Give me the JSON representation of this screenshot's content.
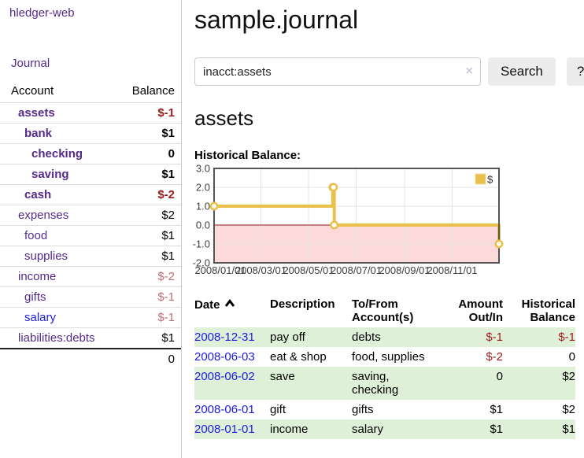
{
  "app": {
    "title": "hledger-web"
  },
  "colors": {
    "link_purple": "#552a8b",
    "link_blue": "#1c1ce0",
    "negative": "#9e1b1b",
    "muted_negative": "#bd6d74",
    "row_highlight": "#dff0d8",
    "chart_line": "#E9C14A",
    "chart_negative_region": "#fcdada",
    "chart_zero_line": "#8b1a1a"
  },
  "sidebar": {
    "journal_link": "Journal",
    "table": {
      "account_header": "Account",
      "balance_header": "Balance",
      "rows": [
        {
          "name": "assets",
          "balance": "$-1",
          "depth": 1,
          "bold": true,
          "link": "purple",
          "value": "neg"
        },
        {
          "name": "bank",
          "balance": "$1",
          "depth": 2,
          "bold": true,
          "link": "purple",
          "value": "pos"
        },
        {
          "name": "checking",
          "balance": "0",
          "depth": 3,
          "bold": true,
          "link": "purple",
          "value": "pos"
        },
        {
          "name": "saving",
          "balance": "$1",
          "depth": 3,
          "bold": true,
          "link": "purple",
          "value": "pos"
        },
        {
          "name": "cash",
          "balance": "$-2",
          "depth": 2,
          "bold": true,
          "link": "purple",
          "value": "neg"
        },
        {
          "name": "expenses",
          "balance": "$2",
          "depth": 1,
          "bold": false,
          "link": "purple",
          "value": "pos"
        },
        {
          "name": "food",
          "balance": "$1",
          "depth": 2,
          "bold": false,
          "link": "purple",
          "value": "pos"
        },
        {
          "name": "supplies",
          "balance": "$1",
          "depth": 2,
          "bold": false,
          "link": "purple",
          "value": "pos"
        },
        {
          "name": "income",
          "balance": "$-2",
          "depth": 1,
          "bold": false,
          "link": "purple",
          "value": "mutedneg"
        },
        {
          "name": "gifts",
          "balance": "$-1",
          "depth": 2,
          "bold": false,
          "link": "purple",
          "value": "mutedneg"
        },
        {
          "name": "salary",
          "balance": "$-1",
          "depth": 2,
          "bold": false,
          "link": "blue",
          "value": "mutedneg"
        },
        {
          "name": "liabilities:debts",
          "balance": "$1",
          "depth": 1,
          "bold": false,
          "link": "purple",
          "value": "pos"
        }
      ],
      "total": "0"
    }
  },
  "main": {
    "title": "sample.journal",
    "search": {
      "value": "inacct:assets",
      "clear_icon": "×",
      "button_label": "Search",
      "help_label": "?"
    },
    "account_heading": "assets",
    "chart_label": "Historical Balance:"
  },
  "chart_data": {
    "type": "line",
    "step": true,
    "title": "Historical Balance:",
    "series": [
      {
        "name": "$",
        "color": "#E9C14A",
        "points": [
          [
            "2008-01-01",
            1
          ],
          [
            "2008-06-01",
            2
          ],
          [
            "2008-06-02",
            2
          ],
          [
            "2008-06-03",
            0
          ],
          [
            "2008-12-31",
            -1
          ]
        ]
      }
    ],
    "x_range": [
      "2008-01-01",
      "2008-12-31"
    ],
    "ylim": [
      -2,
      3
    ],
    "yticks": [
      "3.0",
      "2.0",
      "1.0",
      "0.0",
      "-1.0",
      "-2.0"
    ],
    "xticks": [
      "2008/01/01",
      "2008/03/01",
      "2008/05/01",
      "2008/07/01",
      "2008/09/01",
      "2008/11/01"
    ],
    "legend": {
      "label": "$",
      "position": "top-right"
    },
    "grid": true,
    "negative_region_color": "#fcdada",
    "zero_line_color": "#8b1a1a"
  },
  "register": {
    "headers": [
      {
        "label": "Date",
        "align": "left",
        "sort": "asc"
      },
      {
        "label": "Description",
        "align": "left"
      },
      {
        "label": "To/From Account(s)",
        "align": "left"
      },
      {
        "label": "Amount Out/In",
        "align": "right"
      },
      {
        "label": "Historical Balance",
        "align": "right"
      }
    ],
    "rows": [
      {
        "date": "2008-12-31",
        "description": "pay off",
        "accounts": "debts",
        "amount": "$-1",
        "amount_negative": true,
        "balance": "$-1",
        "balance_negative": true,
        "highlight": true
      },
      {
        "date": "2008-06-03",
        "description": "eat & shop",
        "accounts": "food, supplies",
        "amount": "$-2",
        "amount_negative": true,
        "balance": "0",
        "balance_negative": false,
        "highlight": false
      },
      {
        "date": "2008-06-02",
        "description": "save",
        "accounts": "saving, checking",
        "amount": "0",
        "amount_negative": false,
        "balance": "$2",
        "balance_negative": false,
        "highlight": true
      },
      {
        "date": "2008-06-01",
        "description": "gift",
        "accounts": "gifts",
        "amount": "$1",
        "amount_negative": false,
        "balance": "$2",
        "balance_negative": false,
        "highlight": false
      },
      {
        "date": "2008-01-01",
        "description": "income",
        "accounts": "salary",
        "amount": "$1",
        "amount_negative": false,
        "balance": "$1",
        "balance_negative": false,
        "highlight": true
      }
    ]
  }
}
